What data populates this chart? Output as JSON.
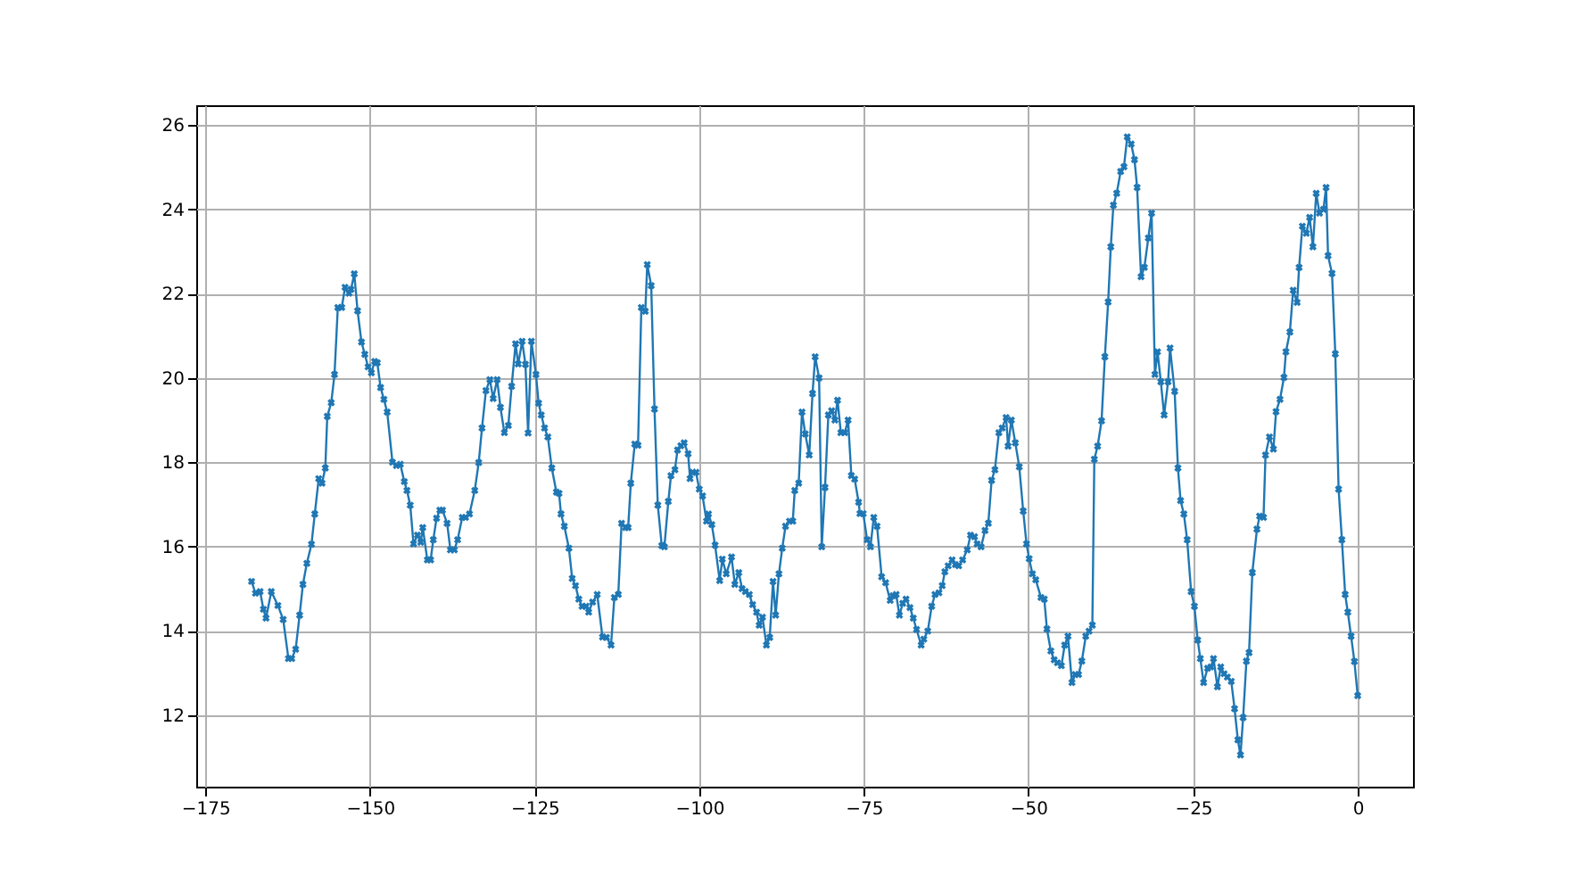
{
  "chart_data": {
    "type": "line",
    "marker": "cross",
    "line_style": "solid",
    "grid": true,
    "xlim": [
      -176.4,
      8.4
    ],
    "ylim": [
      10.3,
      26.47
    ],
    "xticks": [
      -175,
      -150,
      -125,
      -100,
      -75,
      -50,
      -25,
      0
    ],
    "yticks": [
      12,
      14,
      16,
      18,
      20,
      22,
      24,
      26
    ],
    "series": [
      {
        "color": "#1f77b4",
        "x": [
          -168.0,
          -167.4,
          -166.7,
          -166.2,
          -165.8,
          -165.0,
          -164.0,
          -163.2,
          -162.4,
          -161.9,
          -161.3,
          -160.7,
          -160.2,
          -159.6,
          -158.9,
          -158.4,
          -157.8,
          -157.3,
          -156.8,
          -156.5,
          -155.9,
          -155.4,
          -154.9,
          -154.3,
          -153.8,
          -153.2,
          -152.9,
          -152.4,
          -151.9,
          -151.3,
          -150.8,
          -150.3,
          -149.8,
          -149.3,
          -148.9,
          -148.4,
          -147.9,
          -147.4,
          -146.6,
          -146.0,
          -145.4,
          -144.8,
          -144.4,
          -143.9,
          -143.4,
          -142.8,
          -142.3,
          -142.0,
          -141.3,
          -140.8,
          -140.4,
          -139.9,
          -139.4,
          -139.0,
          -138.3,
          -137.8,
          -137.2,
          -136.7,
          -136.0,
          -135.5,
          -134.9,
          -134.1,
          -133.5,
          -133.0,
          -132.4,
          -131.8,
          -131.3,
          -130.7,
          -130.2,
          -129.6,
          -129.0,
          -128.5,
          -127.9,
          -127.5,
          -126.9,
          -126.4,
          -126.0,
          -125.5,
          -124.8,
          -124.4,
          -124.0,
          -123.5,
          -123.0,
          -122.4,
          -121.7,
          -121.3,
          -121.0,
          -120.5,
          -119.8,
          -119.3,
          -118.8,
          -118.3,
          -117.8,
          -117.2,
          -116.8,
          -116.2,
          -115.5,
          -114.7,
          -114.1,
          -113.4,
          -112.9,
          -112.3,
          -111.8,
          -111.2,
          -110.8,
          -110.4,
          -109.8,
          -109.3,
          -108.8,
          -108.2,
          -107.9,
          -107.3,
          -106.8,
          -106.3,
          -105.7,
          -105.3,
          -104.7,
          -104.3,
          -103.7,
          -103.3,
          -102.8,
          -102.3,
          -101.7,
          -101.4,
          -101.0,
          -100.5,
          -100.0,
          -99.5,
          -98.9,
          -98.6,
          -98.1,
          -97.6,
          -96.9,
          -96.5,
          -95.9,
          -95.1,
          -94.6,
          -94.0,
          -93.5,
          -93.0,
          -92.4,
          -91.9,
          -91.3,
          -90.9,
          -90.4,
          -89.8,
          -89.3,
          -88.8,
          -88.4,
          -87.9,
          -87.4,
          -86.9,
          -86.3,
          -85.8,
          -85.5,
          -84.9,
          -84.4,
          -83.9,
          -83.3,
          -82.8,
          -82.4,
          -81.8,
          -81.4,
          -80.9,
          -80.4,
          -79.9,
          -79.4,
          -79.0,
          -78.5,
          -77.9,
          -77.4,
          -76.9,
          -76.4,
          -75.8,
          -75.6,
          -75.1,
          -74.5,
          -74.0,
          -73.5,
          -73.0,
          -72.3,
          -71.7,
          -71.0,
          -70.6,
          -70.1,
          -69.6,
          -69.1,
          -68.6,
          -68.0,
          -67.5,
          -67.0,
          -66.3,
          -65.9,
          -65.3,
          -64.7,
          -64.2,
          -63.6,
          -63.1,
          -62.7,
          -62.2,
          -61.6,
          -61.1,
          -60.6,
          -60.0,
          -59.3,
          -58.8,
          -58.2,
          -57.8,
          -57.2,
          -56.6,
          -56.1,
          -55.6,
          -55.1,
          -54.5,
          -54.0,
          -53.4,
          -53.1,
          -52.6,
          -52.0,
          -51.4,
          -50.8,
          -50.3,
          -49.9,
          -49.4,
          -48.9,
          -48.1,
          -47.6,
          -47.2,
          -46.6,
          -46.1,
          -45.6,
          -45.0,
          -44.5,
          -44.0,
          -43.4,
          -42.9,
          -42.4,
          -41.9,
          -41.3,
          -40.8,
          -40.3,
          -40.0,
          -39.5,
          -38.9,
          -38.4,
          -37.9,
          -37.5,
          -37.1,
          -36.6,
          -36.0,
          -35.5,
          -35.0,
          -34.4,
          -33.9,
          -33.5,
          -32.9,
          -32.4,
          -31.8,
          -31.3,
          -30.8,
          -30.4,
          -29.9,
          -29.4,
          -28.8,
          -28.5,
          -27.8,
          -27.3,
          -26.9,
          -26.4,
          -25.9,
          -25.3,
          -24.8,
          -24.3,
          -23.9,
          -23.4,
          -22.8,
          -22.3,
          -21.9,
          -21.3,
          -20.8,
          -20.3,
          -19.8,
          -19.2,
          -18.7,
          -18.2,
          -17.8,
          -17.4,
          -16.9,
          -16.5,
          -16.0,
          -15.3,
          -14.9,
          -14.3,
          -14.0,
          -13.4,
          -12.8,
          -12.4,
          -11.8,
          -11.2,
          -10.9,
          -10.3,
          -9.8,
          -9.2,
          -8.9,
          -8.4,
          -7.8,
          -7.3,
          -6.8,
          -6.3,
          -5.8,
          -5.2,
          -4.8,
          -4.5,
          -3.9,
          -3.4,
          -2.9,
          -2.4,
          -1.9,
          -1.5,
          -1.0,
          -0.5,
          0
        ],
        "values": [
          15.17,
          14.89,
          14.93,
          14.51,
          14.3,
          14.93,
          14.6,
          14.27,
          13.34,
          13.34,
          13.56,
          14.37,
          15.1,
          15.6,
          16.05,
          16.77,
          17.61,
          17.5,
          17.86,
          19.09,
          19.41,
          20.08,
          21.67,
          21.67,
          22.15,
          22.01,
          22.1,
          22.47,
          21.59,
          20.85,
          20.56,
          20.26,
          20.12,
          20.39,
          20.36,
          19.77,
          19.49,
          19.19,
          18.0,
          17.92,
          17.95,
          17.54,
          17.33,
          16.98,
          16.06,
          16.27,
          16.1,
          16.45,
          15.68,
          15.68,
          16.16,
          16.67,
          16.86,
          16.86,
          16.55,
          15.92,
          15.92,
          16.16,
          16.69,
          16.69,
          16.77,
          17.33,
          17.99,
          18.81,
          19.7,
          19.96,
          19.51,
          19.96,
          19.3,
          18.7,
          18.87,
          19.8,
          20.81,
          20.33,
          20.87,
          20.32,
          18.69,
          20.87,
          20.08,
          19.4,
          19.12,
          18.81,
          18.6,
          17.86,
          17.29,
          17.26,
          16.77,
          16.48,
          15.96,
          15.24,
          15.07,
          14.75,
          14.58,
          14.58,
          14.44,
          14.68,
          14.86,
          13.85,
          13.84,
          13.66,
          14.79,
          14.86,
          16.55,
          16.45,
          16.45,
          17.5,
          18.43,
          18.4,
          21.67,
          21.58,
          22.69,
          22.19,
          19.26,
          16.98,
          16.02,
          15.99,
          17.07,
          17.68,
          17.82,
          18.29,
          18.39,
          18.46,
          18.2,
          17.61,
          17.76,
          17.76,
          17.36,
          17.2,
          16.6,
          16.77,
          16.52,
          16.03,
          15.19,
          15.7,
          15.35,
          15.75,
          15.1,
          15.38,
          15.0,
          14.93,
          14.86,
          14.62,
          14.44,
          14.13,
          14.32,
          13.66,
          13.84,
          15.17,
          14.37,
          15.35,
          15.96,
          16.48,
          16.6,
          16.6,
          17.33,
          17.5,
          19.19,
          18.67,
          18.17,
          19.63,
          20.5,
          20.0,
          15.99,
          17.4,
          19.12,
          19.22,
          19.0,
          19.47,
          18.7,
          18.7,
          19.0,
          17.68,
          17.6,
          17.05,
          16.78,
          16.78,
          16.16,
          15.99,
          16.69,
          16.48,
          15.28,
          15.14,
          14.72,
          14.83,
          14.86,
          14.37,
          14.65,
          14.75,
          14.55,
          14.3,
          14.03,
          13.66,
          13.8,
          13.99,
          14.58,
          14.86,
          14.9,
          15.07,
          15.4,
          15.54,
          15.68,
          15.57,
          15.54,
          15.68,
          15.92,
          16.27,
          16.23,
          16.06,
          15.99,
          16.38,
          16.55,
          17.57,
          17.82,
          18.7,
          18.81,
          19.06,
          18.38,
          19.0,
          18.46,
          17.89,
          16.84,
          16.06,
          15.71,
          15.35,
          15.21,
          14.79,
          14.75,
          14.04,
          13.52,
          13.31,
          13.24,
          13.17,
          13.66,
          13.87,
          12.77,
          12.96,
          12.96,
          13.28,
          13.87,
          13.99,
          14.13,
          18.07,
          18.38,
          18.98,
          20.5,
          21.8,
          23.11,
          24.1,
          24.38,
          24.9,
          25.01,
          25.72,
          25.55,
          25.18,
          24.52,
          22.4,
          22.62,
          23.32,
          23.91,
          20.08,
          20.62,
          19.91,
          19.12,
          19.91,
          20.71,
          19.68,
          17.86,
          17.09,
          16.77,
          16.16,
          14.93,
          14.58,
          13.78,
          13.34,
          12.77,
          13.11,
          13.14,
          13.34,
          12.67,
          13.14,
          12.98,
          12.9,
          12.8,
          12.15,
          11.41,
          11.05,
          11.94,
          13.28,
          13.48,
          15.38,
          16.41,
          16.72,
          16.69,
          18.17,
          18.6,
          18.31,
          19.2,
          19.49,
          20.01,
          20.62,
          21.09,
          22.08,
          21.79,
          22.62,
          23.6,
          23.43,
          23.81,
          23.11,
          24.38,
          23.91,
          24.0,
          24.52,
          22.9,
          22.48,
          20.57,
          17.36,
          16.16,
          14.86,
          14.44,
          13.87,
          13.27,
          12.46
        ]
      }
    ]
  }
}
